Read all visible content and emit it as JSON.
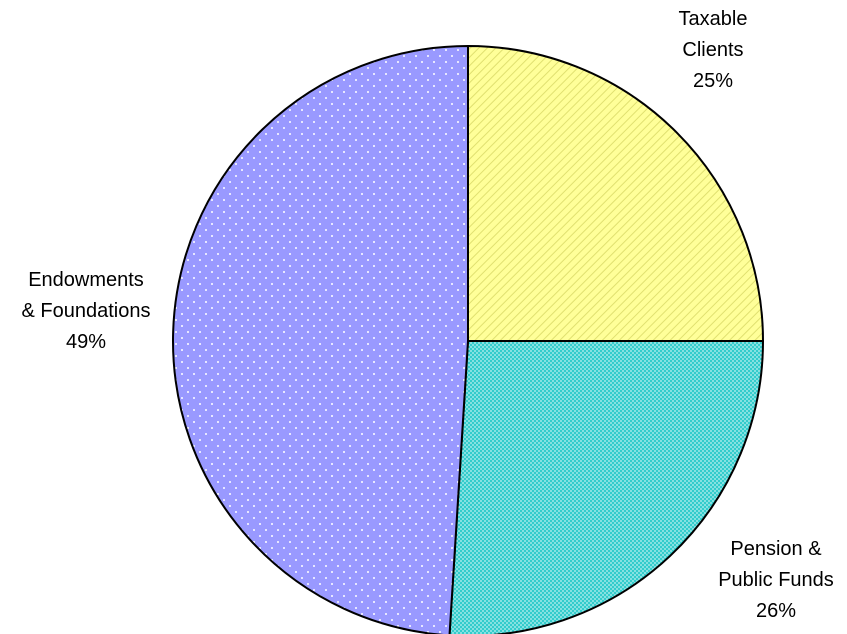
{
  "chart_data": {
    "type": "pie",
    "categories": [
      "Taxable Clients",
      "Pension & Public Funds",
      "Endowments & Foundations"
    ],
    "values": [
      25,
      26,
      49
    ],
    "value_labels": [
      "25%",
      "26%",
      "49%"
    ],
    "colors": [
      "#ffff99",
      "#33cccc",
      "#9999ff"
    ]
  }
}
